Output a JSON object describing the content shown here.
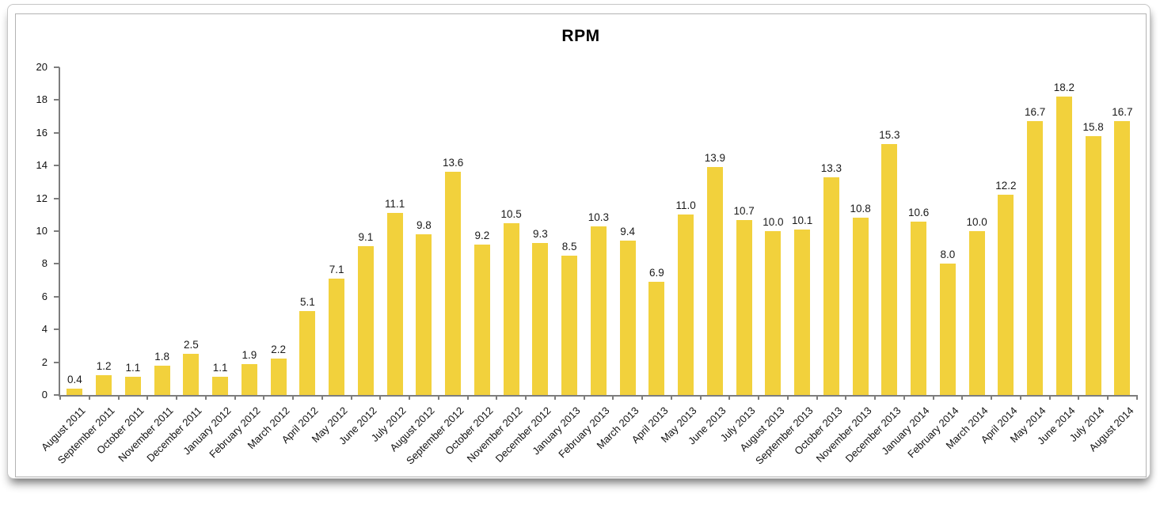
{
  "chart_data": {
    "type": "bar",
    "title": "RPM",
    "xlabel": "",
    "ylabel": "",
    "ylim": [
      0,
      20
    ],
    "yticks": [
      0,
      2,
      4,
      6,
      8,
      10,
      12,
      14,
      16,
      18,
      20
    ],
    "grid": false,
    "legend": "none",
    "bar_color": "#F2D13C",
    "axis_color": "#7d7d7d",
    "label_color": "#1a1a1a",
    "value_label_decimals": 1,
    "categories": [
      "August 2011",
      "September 2011",
      "October 2011",
      "November 2011",
      "December 2011",
      "January 2012",
      "February 2012",
      "March 2012",
      "April 2012",
      "May 2012",
      "June 2012",
      "July 2012",
      "August 2012",
      "September 2012",
      "October 2012",
      "November 2012",
      "December 2012",
      "January 2013",
      "February 2013",
      "March 2013",
      "April 2013",
      "May 2013",
      "June 2013",
      "July 2013",
      "August 2013",
      "September 2013",
      "October 2013",
      "November 2013",
      "December 2013",
      "January 2014",
      "February 2014",
      "March 2014",
      "April 2014",
      "May 2014",
      "June 2014",
      "July 2014",
      "August 2014"
    ],
    "values": [
      0.4,
      1.2,
      1.1,
      1.8,
      2.5,
      1.1,
      1.9,
      2.2,
      5.1,
      7.1,
      9.1,
      11.1,
      9.8,
      13.6,
      9.2,
      10.5,
      9.3,
      8.5,
      10.3,
      9.4,
      6.9,
      11.0,
      13.9,
      10.7,
      10.0,
      10.1,
      13.3,
      10.8,
      15.3,
      10.6,
      8.0,
      10.0,
      12.2,
      16.7,
      18.2,
      15.8,
      16.7
    ]
  }
}
